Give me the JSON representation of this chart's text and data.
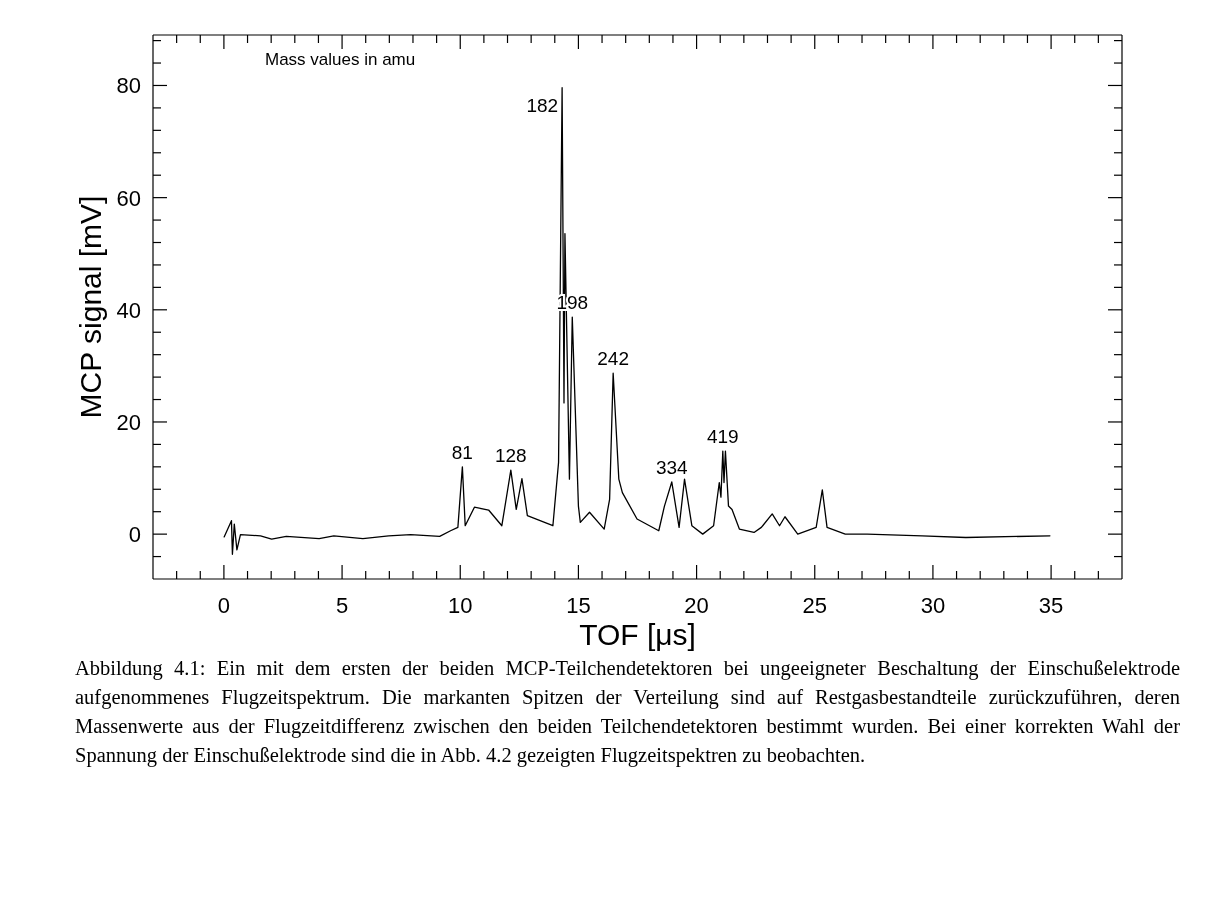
{
  "chart_data": {
    "type": "line",
    "xlabel": "TOF [μs]",
    "ylabel": "MCP signal [mV]",
    "color": "#000000",
    "marker": "none",
    "line_style": "solid",
    "grid": false,
    "legend": false,
    "xlim": [
      -3,
      38
    ],
    "ylim": [
      -8,
      89
    ],
    "xticks": [
      {
        "value": -2,
        "label": null
      },
      {
        "value": -1,
        "label": null
      },
      0,
      {
        "value": 1,
        "label": null
      },
      {
        "value": 2,
        "label": null
      },
      {
        "value": 3,
        "label": null
      },
      {
        "value": 4,
        "label": null
      },
      5,
      {
        "value": 6,
        "label": null
      },
      {
        "value": 7,
        "label": null
      },
      {
        "value": 8,
        "label": null
      },
      {
        "value": 9,
        "label": null
      },
      10,
      {
        "value": 11,
        "label": null
      },
      {
        "value": 12,
        "label": null
      },
      {
        "value": 13,
        "label": null
      },
      {
        "value": 14,
        "label": null
      },
      15,
      {
        "value": 16,
        "label": null
      },
      {
        "value": 17,
        "label": null
      },
      {
        "value": 18,
        "label": null
      },
      {
        "value": 19,
        "label": null
      },
      20,
      {
        "value": 21,
        "label": null
      },
      {
        "value": 22,
        "label": null
      },
      {
        "value": 23,
        "label": null
      },
      {
        "value": 24,
        "label": null
      },
      25,
      {
        "value": 26,
        "label": null
      },
      {
        "value": 27,
        "label": null
      },
      {
        "value": 28,
        "label": null
      },
      {
        "value": 29,
        "label": null
      },
      30,
      {
        "value": 31,
        "label": null
      },
      {
        "value": 32,
        "label": null
      },
      {
        "value": 33,
        "label": null
      },
      {
        "value": 34,
        "label": null
      },
      35,
      {
        "value": 36,
        "label": null
      },
      {
        "value": 37,
        "label": null
      }
    ],
    "yticks": [
      {
        "value": -4,
        "label": null
      },
      0,
      {
        "value": 4,
        "label": null
      },
      {
        "value": 8,
        "label": null
      },
      {
        "value": 12,
        "label": null
      },
      {
        "value": 16,
        "label": null
      },
      20,
      {
        "value": 24,
        "label": null
      },
      {
        "value": 28,
        "label": null
      },
      {
        "value": 32,
        "label": null
      },
      {
        "value": 36,
        "label": null
      },
      40,
      {
        "value": 44,
        "label": null
      },
      {
        "value": 48,
        "label": null
      },
      {
        "value": 52,
        "label": null
      },
      {
        "value": 56,
        "label": null
      },
      60,
      {
        "value": 64,
        "label": null
      },
      {
        "value": 68,
        "label": null
      },
      {
        "value": 72,
        "label": null
      },
      {
        "value": 76,
        "label": null
      },
      80,
      {
        "value": 84,
        "label": null
      },
      {
        "value": 88,
        "label": null
      }
    ],
    "x": [
      0.01,
      0.32,
      0.36,
      0.44,
      0.55,
      0.7,
      1.55,
      2.02,
      2.64,
      4.03,
      4.65,
      5.88,
      6.97,
      7.9,
      9.13,
      9.59,
      9.9,
      10.09,
      10.21,
      10.6,
      11.2,
      11.76,
      12.14,
      12.37,
      12.61,
      12.84,
      13.92,
      14.16,
      14.31,
      14.39,
      14.43,
      14.62,
      14.74,
      15.0,
      15.08,
      15.47,
      16.09,
      16.32,
      16.47,
      16.71,
      16.86,
      17.48,
      18.4,
      18.64,
      18.95,
      19.26,
      19.49,
      19.8,
      20.26,
      20.72,
      20.96,
      21.03,
      21.11,
      21.16,
      21.22,
      21.35,
      21.5,
      21.81,
      22.43,
      22.74,
      23.2,
      23.51,
      23.74,
      24.28,
      25.06,
      25.32,
      25.52,
      26.29,
      27.22,
      29.54,
      31.39,
      34.95
    ],
    "values": [
      -0.5,
      2.4,
      -3.6,
      1.8,
      -2.8,
      -0.1,
      -0.3,
      -0.9,
      -0.4,
      -0.8,
      -0.3,
      -0.8,
      -0.3,
      -0.1,
      -0.4,
      0.6,
      1.2,
      12.0,
      1.5,
      4.8,
      4.3,
      1.5,
      11.4,
      4.4,
      9.9,
      3.3,
      1.5,
      12.8,
      79.6,
      23.4,
      53.6,
      9.8,
      38.7,
      5.0,
      2.1,
      3.9,
      0.9,
      6.2,
      28.7,
      9.8,
      7.4,
      2.7,
      0.6,
      5.0,
      9.3,
      1.2,
      9.8,
      1.5,
      0,
      1.5,
      9.2,
      6.6,
      14.8,
      9.2,
      14.8,
      5.0,
      4.4,
      0.9,
      0.3,
      1.2,
      3.6,
      1.5,
      3.1,
      0,
      1.2,
      7.9,
      1.2,
      0,
      0,
      -0.3,
      -0.6,
      -0.3
    ],
    "annotations": [
      "Mass values in amu",
      {
        "text": "81",
        "x": 10.09,
        "y": 12.0
      },
      {
        "text": "128",
        "x": 12.14,
        "y": 11.4
      },
      {
        "text": "182",
        "x": 14.31,
        "y": 79.6
      },
      {
        "text": "198",
        "x": 14.74,
        "y": 38.7
      },
      {
        "text": "242",
        "x": 16.47,
        "y": 28.7
      },
      {
        "text": "334",
        "x": 18.95,
        "y": 9.3
      },
      {
        "text": "419",
        "x": 21.11,
        "y": 14.8
      },
      "Abbildung 4.1: Ein mit dem ersten der beiden MCP-Teilchendetektoren bei ungeeigneter Beschaltung der Einschußelektrode aufgenommenes Flugzeitspektrum. Die markanten Spitzen der Verteilung sind auf Restgasbestandteile zurückzuführen, deren Massenwerte aus der Flugzeitdifferenz zwischen den beiden Teilchendetektoren bestimmt wurden. Bei einer korrekten Wahl der Spannung der Einschußelektrode sind die in Abb. 4.2 gezeigten Flugzeitspektren zu beobachten."
    ]
  }
}
